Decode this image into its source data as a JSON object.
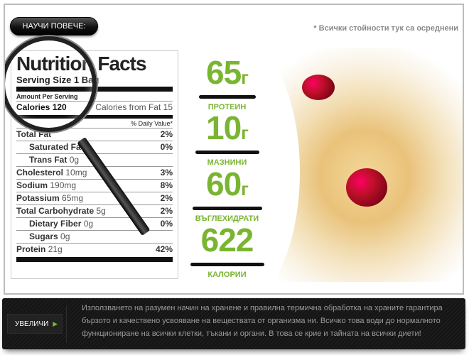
{
  "header": {
    "learn_more": "НАУЧИ ПОВЕЧЕ:",
    "note": "* Всички стойности тук са осреднени"
  },
  "label": {
    "title": "Nutrition Facts",
    "serving": "Serving Size 1 Bag",
    "amount": "Amount Per Serving",
    "calories": "Calories 120",
    "calories_fat": "Calories from Fat 15",
    "daily_value": "% Daily Value*",
    "rows": [
      {
        "name": "Total Fat",
        "qty": "",
        "pct": "2%",
        "indent": false
      },
      {
        "name": "Saturated Fat",
        "qty": "",
        "pct": "0%",
        "indent": true
      },
      {
        "name": "Trans Fat",
        "qty": "0g",
        "pct": "",
        "indent": true
      },
      {
        "name": "Cholesterol",
        "qty": "10mg",
        "pct": "3%",
        "indent": false
      },
      {
        "name": "Sodium",
        "qty": "190mg",
        "pct": "8%",
        "indent": false
      },
      {
        "name": "Potassium",
        "qty": "65mg",
        "pct": "2%",
        "indent": false
      },
      {
        "name": "Total Carbohydrate",
        "qty": "5g",
        "pct": "2%",
        "indent": false
      },
      {
        "name": "Dietary Fiber",
        "qty": "0g",
        "pct": "0%",
        "indent": true
      },
      {
        "name": "Sugars",
        "qty": "0g",
        "pct": "",
        "indent": true
      },
      {
        "name": "Protein",
        "qty": "21g",
        "pct": "42%",
        "indent": false
      }
    ]
  },
  "stats": [
    {
      "value": "65",
      "unit": "г",
      "label": "ПРОТЕИН"
    },
    {
      "value": "10",
      "unit": "г",
      "label": "МАЗНИНИ"
    },
    {
      "value": "60",
      "unit": "г",
      "label": "ВЪГЛЕХИДРАТИ"
    },
    {
      "value": "622",
      "unit": "",
      "label": "КАЛОРИИ"
    }
  ],
  "footer": {
    "zoom_label": "УВЕЛИЧИ",
    "arrow_icon": "play-arrow-icon",
    "text": "Използването на разумен начин на хранене и правилна термична обработка на храните гарантира бързото и качествено усвояване на веществата от организма ни. Всичко това води до нормалното функциониране на всички клетки, тъкани и органи. В това се крие и тайната на всички диети!"
  },
  "colors": {
    "accent": "#7ab532"
  }
}
